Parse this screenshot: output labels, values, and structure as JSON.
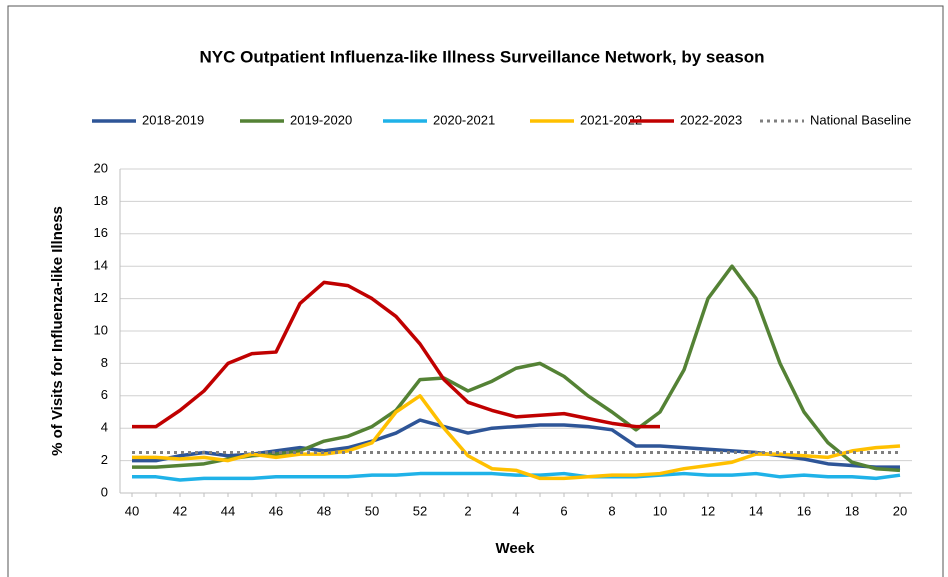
{
  "chart_data": {
    "type": "line",
    "title": "NYC Outpatient Influenza-like Illness Surveillance Network, by season",
    "x_label": "Week",
    "y_label": "% of Visits for Influenza-like Illness",
    "categories": [
      "40",
      null,
      "42",
      null,
      "44",
      null,
      "46",
      null,
      "48",
      null,
      "50",
      null,
      "52",
      null,
      "2",
      null,
      "4",
      null,
      "6",
      null,
      "8",
      null,
      "10",
      null,
      "12",
      null,
      "14",
      null,
      "16",
      null,
      "18",
      null,
      "20"
    ],
    "ylim": [
      0,
      20
    ],
    "yticks": [
      0,
      2,
      4,
      6,
      8,
      10,
      12,
      14,
      16,
      18,
      20
    ],
    "grid": true,
    "legend": "top",
    "series": [
      {
        "name": "2018-2019",
        "color": "#2e5597",
        "values": [
          2.0,
          2.0,
          2.3,
          2.5,
          2.3,
          2.4,
          2.6,
          2.8,
          2.6,
          2.8,
          3.2,
          3.7,
          4.5,
          4.1,
          3.7,
          4.0,
          4.1,
          4.2,
          4.2,
          4.1,
          3.9,
          2.9,
          2.9,
          2.8,
          2.7,
          2.6,
          2.5,
          2.3,
          2.1,
          1.8,
          1.7,
          1.6,
          1.6
        ]
      },
      {
        "name": "2019-2020",
        "color": "#548235",
        "values": [
          1.6,
          1.6,
          1.7,
          1.8,
          2.1,
          2.3,
          2.4,
          2.6,
          3.2,
          3.5,
          4.1,
          5.1,
          7.0,
          7.1,
          6.3,
          6.9,
          7.7,
          8.0,
          7.2,
          6.0,
          5.0,
          3.9,
          5.0,
          7.6,
          12.0,
          14.0,
          12.0,
          8.0,
          5.0,
          3.1,
          1.9,
          1.5,
          1.4
        ]
      },
      {
        "name": "2020-2021",
        "color": "#1fb2e8",
        "values": [
          1.0,
          1.0,
          0.8,
          0.9,
          0.9,
          0.9,
          1.0,
          1.0,
          1.0,
          1.0,
          1.1,
          1.1,
          1.2,
          1.2,
          1.2,
          1.2,
          1.1,
          1.1,
          1.2,
          1.0,
          1.0,
          1.0,
          1.1,
          1.2,
          1.1,
          1.1,
          1.2,
          1.0,
          1.1,
          1.0,
          1.0,
          0.9,
          1.1
        ]
      },
      {
        "name": "2021-2022",
        "color": "#ffc000",
        "values": [
          2.2,
          2.2,
          2.1,
          2.2,
          2.0,
          2.4,
          2.2,
          2.4,
          2.4,
          2.6,
          3.1,
          5.0,
          6.0,
          4.0,
          2.3,
          1.5,
          1.4,
          0.9,
          0.9,
          1.0,
          1.1,
          1.1,
          1.2,
          1.5,
          1.7,
          1.9,
          2.4,
          2.4,
          2.3,
          2.2,
          2.6,
          2.8,
          2.9
        ]
      },
      {
        "name": "2022-2023",
        "color": "#c00000",
        "values": [
          4.1,
          4.1,
          5.1,
          6.3,
          8.0,
          8.6,
          8.7,
          11.7,
          13.0,
          12.8,
          12.0,
          10.9,
          9.2,
          7.0,
          5.6,
          5.1,
          4.7,
          4.8,
          4.9,
          4.6,
          4.3,
          4.1,
          4.1,
          null,
          null,
          null,
          null,
          null,
          null,
          null,
          null,
          null,
          null
        ]
      },
      {
        "name": "National Baseline",
        "color": "#7f7f7f",
        "dash": "dotted",
        "values": [
          2.5,
          2.5,
          2.5,
          2.5,
          2.5,
          2.5,
          2.5,
          2.5,
          2.5,
          2.5,
          2.5,
          2.5,
          2.5,
          2.5,
          2.5,
          2.5,
          2.5,
          2.5,
          2.5,
          2.5,
          2.5,
          2.5,
          2.5,
          2.5,
          2.5,
          2.5,
          2.5,
          2.5,
          2.5,
          2.5,
          2.5,
          2.5,
          2.5
        ]
      }
    ]
  }
}
